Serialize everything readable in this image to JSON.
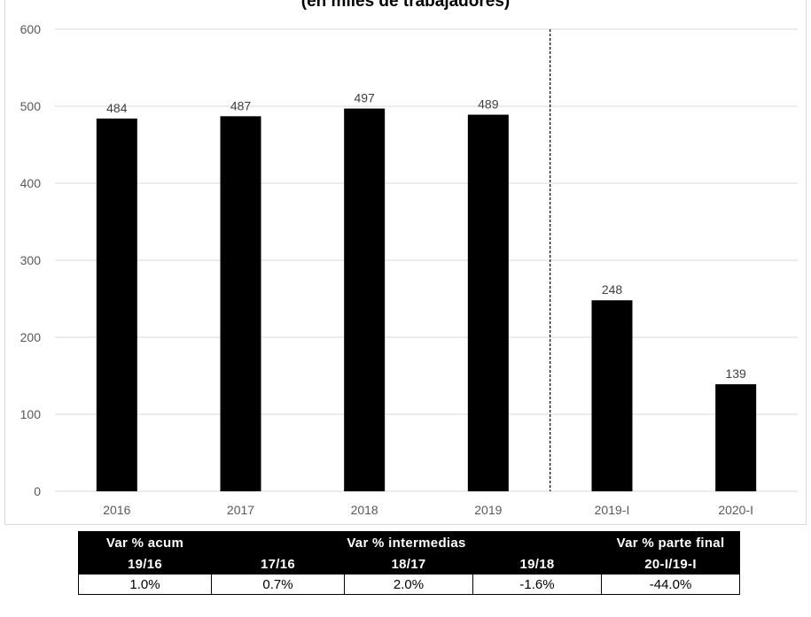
{
  "chart_data": {
    "type": "bar",
    "title": "(en miles de trabajadores)",
    "categories": [
      "2016",
      "2017",
      "2018",
      "2019",
      "2019-I",
      "2020-I"
    ],
    "values": [
      484,
      487,
      497,
      489,
      248,
      139
    ],
    "ylim": [
      0,
      600
    ],
    "yticks": [
      0,
      100,
      200,
      300,
      400,
      500,
      600
    ],
    "grid": true,
    "bar_color": "#000000",
    "separator_after_category": "2019"
  },
  "table": {
    "header_top": {
      "acum": "Var % acum",
      "intermedias": "Var % intermedias",
      "final": "Var % parte final"
    },
    "header_sub": [
      "19/16",
      "17/16",
      "18/17",
      "19/18",
      "20-I/19-I"
    ],
    "values": [
      "1.0%",
      "0.7%",
      "2.0%",
      "-1.6%",
      "-44.0%"
    ]
  }
}
